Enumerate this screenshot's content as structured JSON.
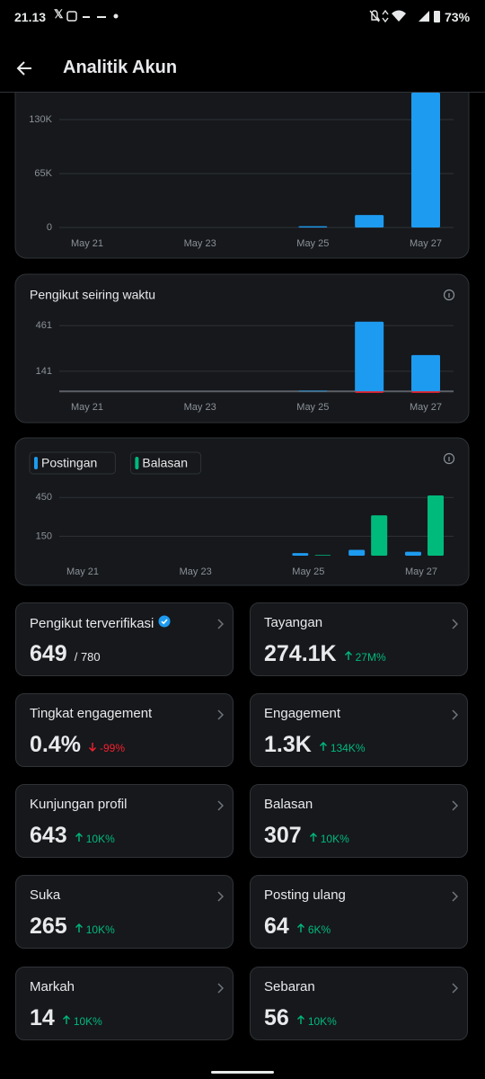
{
  "status_bar": {
    "time": "21.13",
    "battery": "73%"
  },
  "header": {
    "title": "Analitik Akun"
  },
  "charts": [
    {
      "type": "bar",
      "categories": [
        "May 21",
        null,
        "May 23",
        null,
        "May 25",
        null,
        "May 27"
      ],
      "series": [
        {
          "color": "#1d9bf0",
          "values": [
            0,
            0,
            0,
            0,
            1500,
            15000,
            170000
          ]
        }
      ],
      "ylim": [
        0,
        162500
      ],
      "yticks": [
        0,
        {
          "value": 65000,
          "label": "65K"
        },
        {
          "value": 130000,
          "label": "130K"
        }
      ],
      "grid": true
    },
    {
      "type": "bar",
      "title": "Pengikut seiring waktu",
      "categories": [
        "May 21",
        null,
        "May 23",
        null,
        "May 25",
        null,
        "May 27"
      ],
      "series": [
        {
          "color": "#1d9bf0",
          "values": [
            0,
            0,
            0,
            0,
            5,
            489,
            255
          ]
        },
        {
          "color": "#f4212e",
          "values": [
            0,
            0,
            0,
            0,
            0,
            -10,
            -10
          ]
        }
      ],
      "ylim": [
        -30,
        500
      ],
      "yticks": [
        141,
        461
      ],
      "grid": true
    },
    {
      "type": "grouped_bar",
      "categories": [
        "May 21",
        null,
        "May 23",
        null,
        "May 25",
        null,
        "May 27"
      ],
      "series": [
        {
          "name": "Postingan",
          "color": "#1d9bf0",
          "values": [
            0,
            0,
            0,
            0,
            20,
            45,
            30
          ]
        },
        {
          "name": "Balasan",
          "color": "#00ba7c",
          "values": [
            0,
            0,
            0,
            0,
            5,
            312,
            465
          ]
        }
      ],
      "ylim": [
        0,
        500
      ],
      "yticks": [
        150,
        450
      ],
      "grid": true
    }
  ],
  "cards": [
    {
      "label": "Pengikut terverifikasi",
      "value": "649",
      "total": "/ 780",
      "verified": true
    },
    {
      "label": "Tayangan",
      "value": "274.1K",
      "change": "27M%",
      "trend": "up"
    },
    {
      "label": "Tingkat engagement",
      "value": "0.4%",
      "change": "-99%",
      "trend": "down"
    },
    {
      "label": "Engagement",
      "value": "1.3K",
      "change": "134K%",
      "trend": "up"
    },
    {
      "label": "Kunjungan profil",
      "value": "643",
      "change": "10K%",
      "trend": "up"
    },
    {
      "label": "Balasan",
      "value": "307",
      "change": "10K%",
      "trend": "up"
    },
    {
      "label": "Suka",
      "value": "265",
      "change": "10K%",
      "trend": "up"
    },
    {
      "label": "Posting ulang",
      "value": "64",
      "change": "6K%",
      "trend": "up"
    },
    {
      "label": "Markah",
      "value": "14",
      "change": "10K%",
      "trend": "up"
    },
    {
      "label": "Sebaran",
      "value": "56",
      "change": "10K%",
      "trend": "up"
    }
  ]
}
